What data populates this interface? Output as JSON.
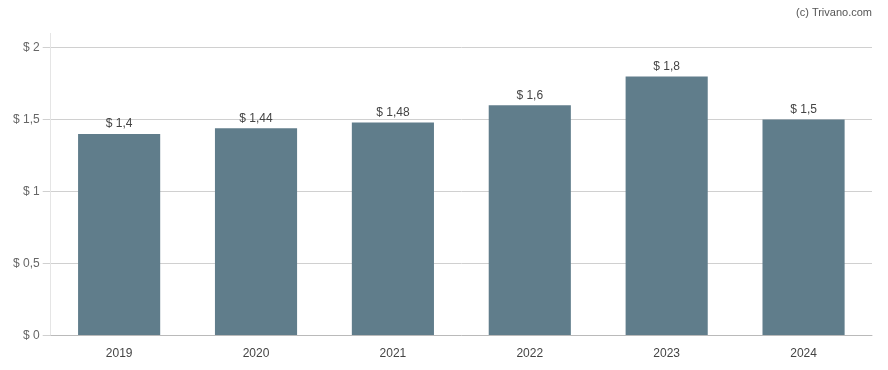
{
  "chart_data": {
    "type": "bar",
    "categories": [
      "2019",
      "2020",
      "2021",
      "2022",
      "2023",
      "2024"
    ],
    "values": [
      1.4,
      1.44,
      1.48,
      1.6,
      1.8,
      1.5
    ],
    "value_labels": [
      "$ 1,4",
      "$ 1,44",
      "$ 1,48",
      "$ 1,6",
      "$ 1,8",
      "$ 1,5"
    ],
    "color": "#607d8b",
    "ylim": [
      0,
      2.1
    ],
    "yticks": [
      {
        "value": 0,
        "label": "$ 0"
      },
      {
        "value": 0.5,
        "label": "$ 0,5"
      },
      {
        "value": 1.0,
        "label": "$ 1"
      },
      {
        "value": 1.5,
        "label": "$ 1,5"
      },
      {
        "value": 2.0,
        "label": "$ 2"
      }
    ],
    "grid": true,
    "data_labels": true,
    "annotations": [
      "(c) Trivano.com"
    ]
  }
}
